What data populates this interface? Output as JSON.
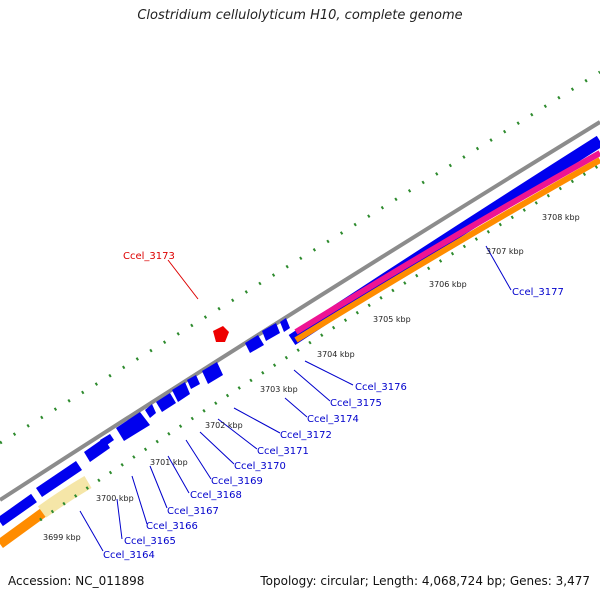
{
  "title": "Clostridium cellulolyticum H10, complete genome",
  "footer": {
    "accession": "Accession: NC_011898",
    "stats": "Topology: circular; Length: 4,068,724 bp; Genes: 3,477"
  },
  "colors": {
    "backbone": "#8c8c8c",
    "gene_forward": "#0000ee",
    "gene_highlight": "#ee0000",
    "track_magenta": "#ee1493",
    "track_orange": "#ff8c00",
    "track_tan": "#f5e6a8",
    "tick": "#2e8b2e",
    "label_blue": "#0000cc",
    "label_red": "#dd0000"
  },
  "scale_labels": [
    "3699 kbp",
    "3700 kbp",
    "3701 kbp",
    "3702 kbp",
    "3703 kbp",
    "3704 kbp",
    "3705 kbp",
    "3706 kbp",
    "3707 kbp",
    "3708 kbp"
  ],
  "genes": [
    {
      "label": "Ccel_3164",
      "color": "blue"
    },
    {
      "label": "Ccel_3165",
      "color": "blue"
    },
    {
      "label": "Ccel_3166",
      "color": "blue"
    },
    {
      "label": "Ccel_3167",
      "color": "blue"
    },
    {
      "label": "Ccel_3168",
      "color": "blue"
    },
    {
      "label": "Ccel_3169",
      "color": "blue"
    },
    {
      "label": "Ccel_3170",
      "color": "blue"
    },
    {
      "label": "Ccel_3171",
      "color": "blue"
    },
    {
      "label": "Ccel_3172",
      "color": "blue"
    },
    {
      "label": "Ccel_3173",
      "color": "red"
    },
    {
      "label": "Ccel_3174",
      "color": "blue"
    },
    {
      "label": "Ccel_3175",
      "color": "blue"
    },
    {
      "label": "Ccel_3176",
      "color": "blue"
    },
    {
      "label": "Ccel_3177",
      "color": "blue"
    }
  ]
}
